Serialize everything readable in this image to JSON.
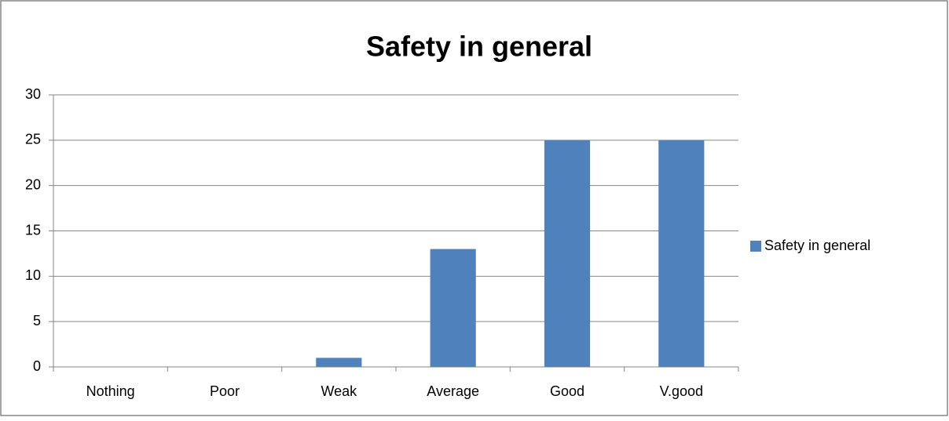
{
  "chart_data": {
    "type": "bar",
    "title": "Safety in general",
    "categories": [
      "Nothing",
      "Poor",
      "Weak",
      "Average",
      "Good",
      "V.good"
    ],
    "series": [
      {
        "name": "Safety in general",
        "color": "#4f81bd",
        "values": [
          0,
          0,
          1,
          13,
          25,
          25
        ]
      }
    ],
    "ylim": [
      0,
      30
    ],
    "yticks": [
      0,
      5,
      10,
      15,
      20,
      25,
      30
    ],
    "grid": true,
    "legend": "right"
  }
}
